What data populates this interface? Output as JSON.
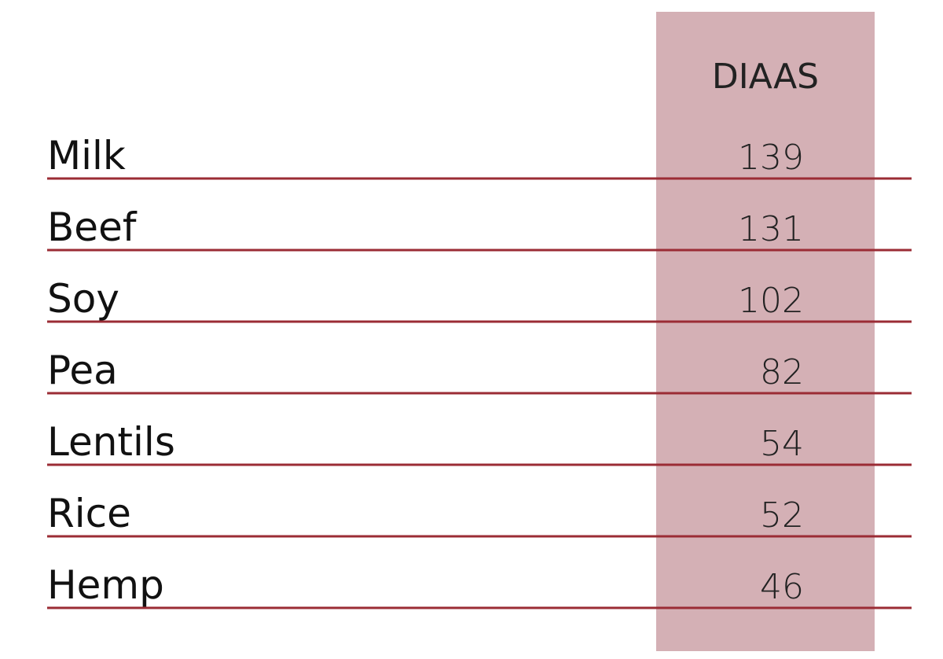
{
  "table": {
    "column_header": "DIAAS",
    "rows": [
      [
        "Milk",
        139
      ],
      [
        "Beef",
        131
      ],
      [
        "Soy",
        102
      ],
      [
        "Pea",
        82
      ],
      [
        "Lentils",
        54
      ],
      [
        "Rice",
        52
      ],
      [
        "Hemp",
        46
      ]
    ]
  }
}
